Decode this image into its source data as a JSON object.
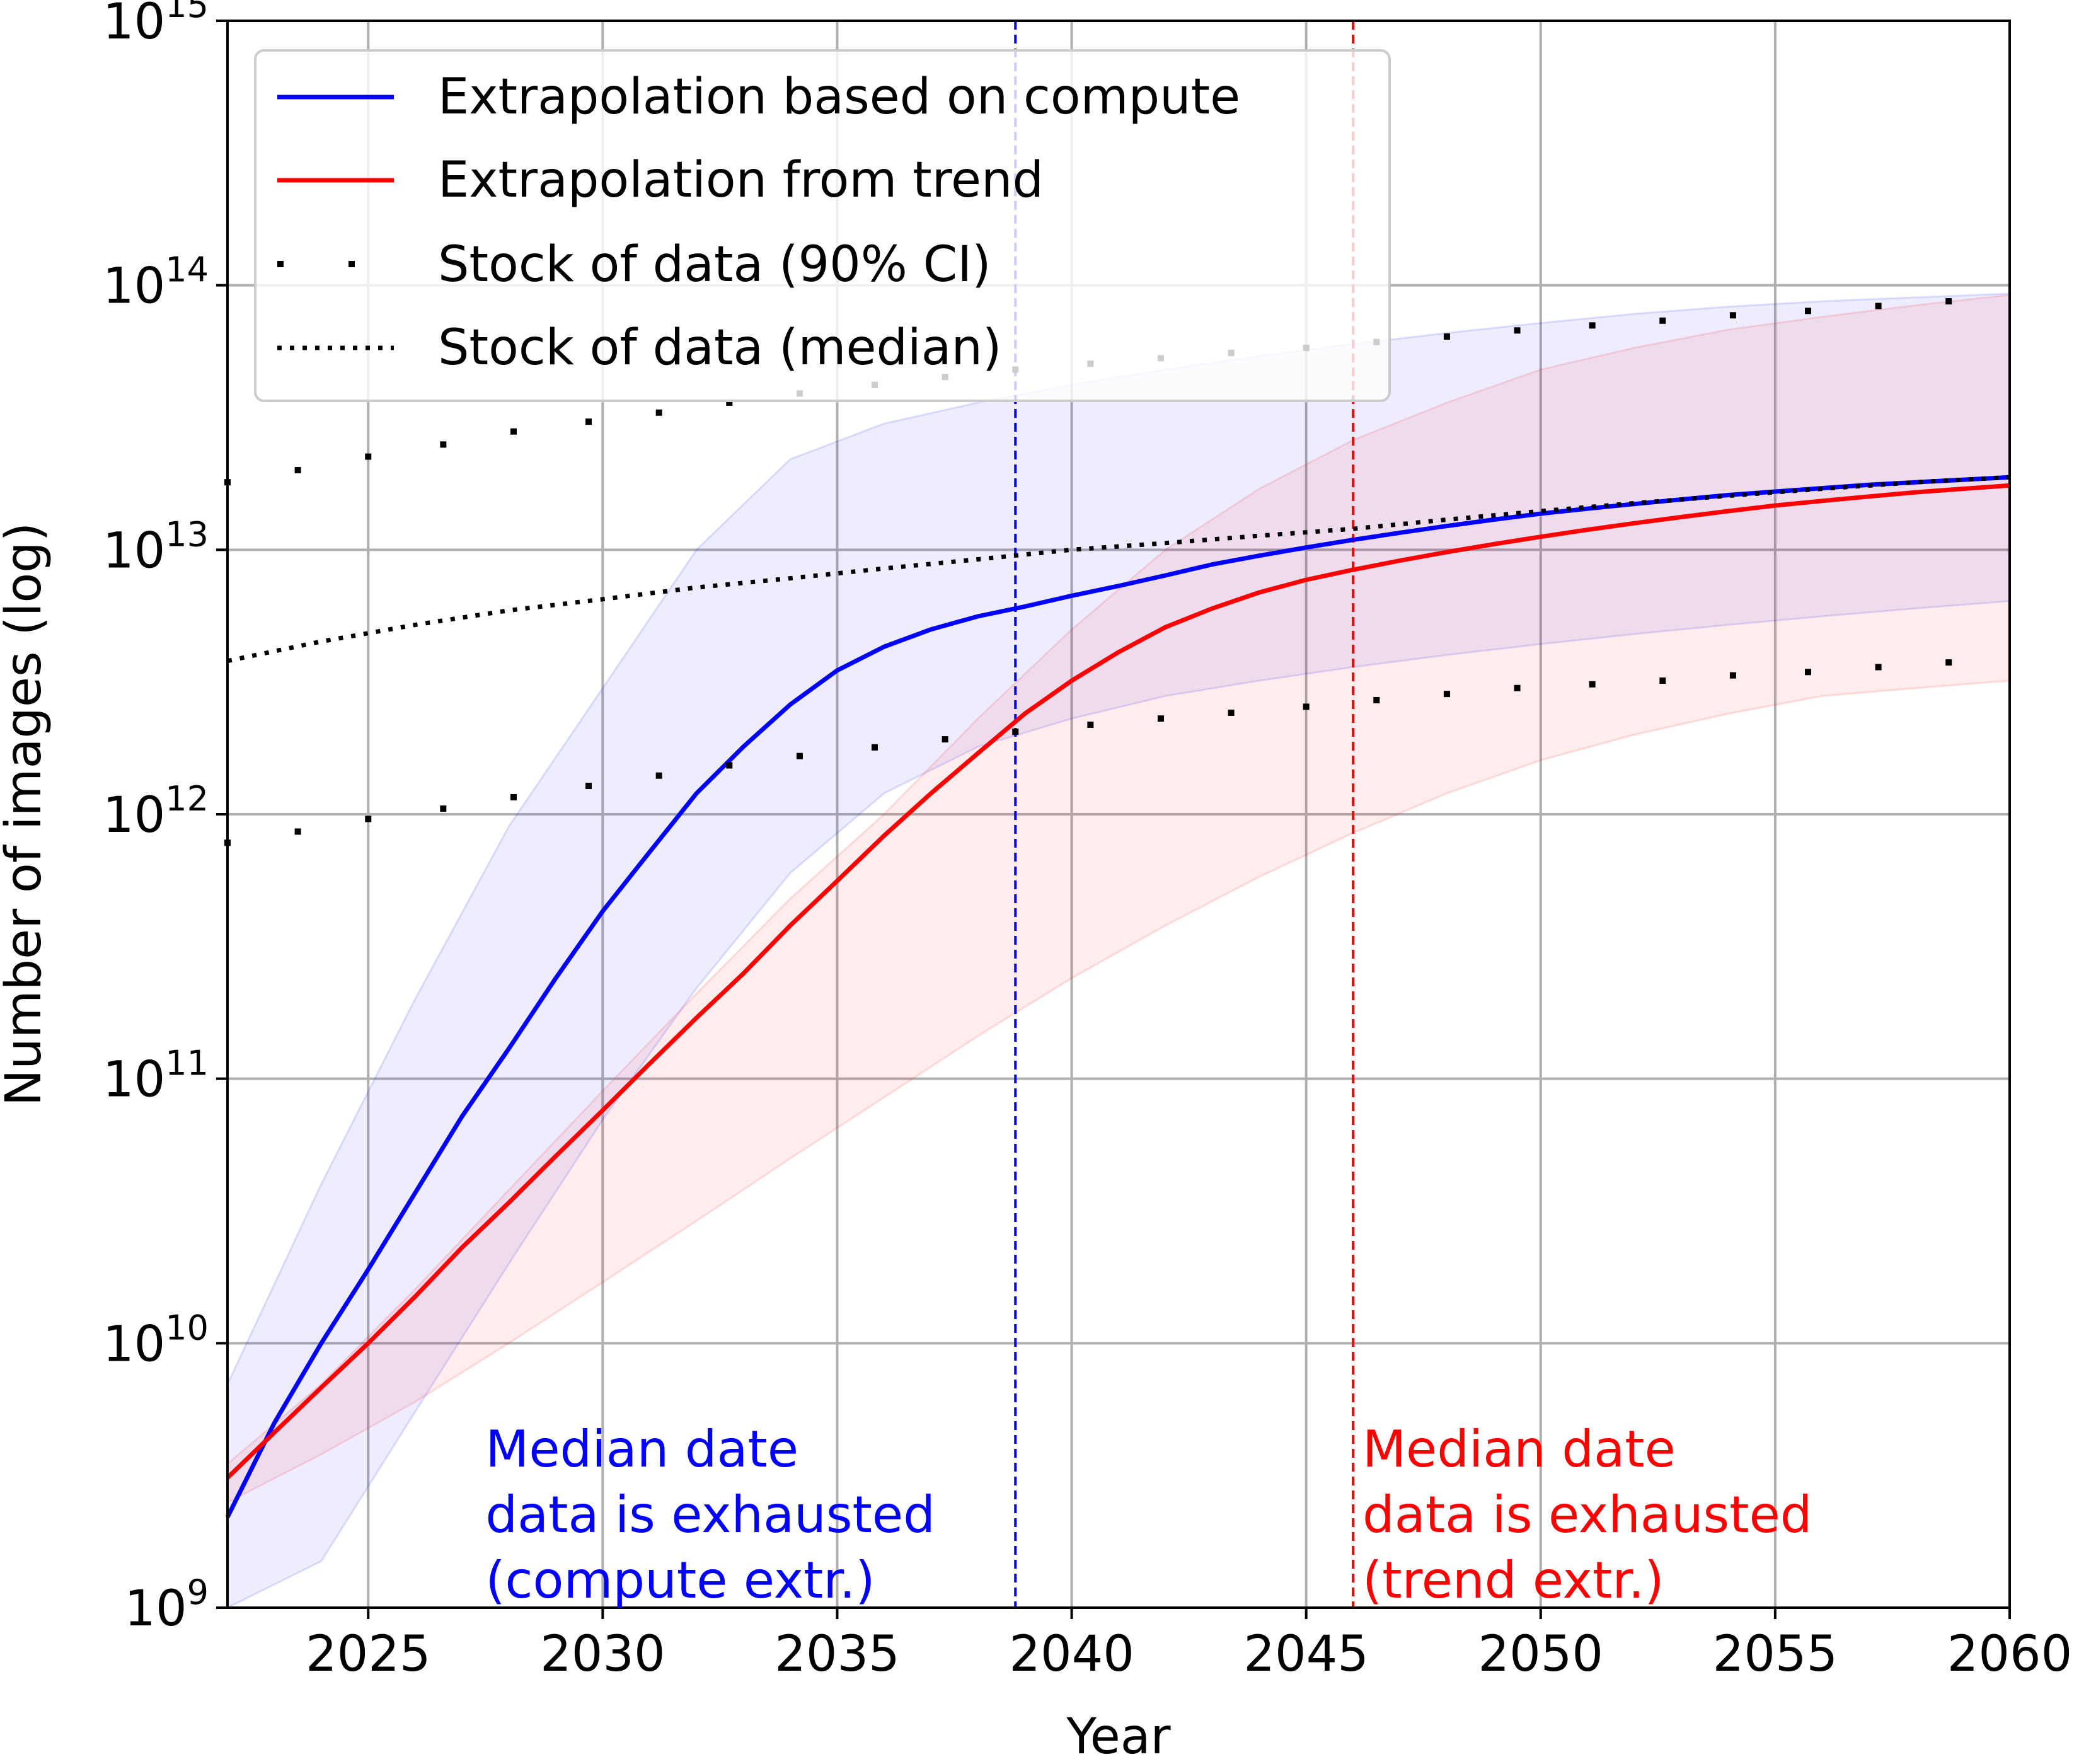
{
  "chart_data": {
    "type": "line",
    "title": "",
    "xlabel": "Year",
    "ylabel": "Number of images (log)",
    "xlim": [
      2022,
      2060
    ],
    "ylim": [
      1000000000.0,
      1000000000000000.0
    ],
    "yscale": "log",
    "grid": true,
    "legend_position": "top-left",
    "x_ticks": [
      "2025",
      "2030",
      "2035",
      "2040",
      "2045",
      "2050",
      "2055",
      "2060"
    ],
    "y_ticks": [
      {
        "base": "10",
        "exp": "9"
      },
      {
        "base": "10",
        "exp": "10"
      },
      {
        "base": "10",
        "exp": "11"
      },
      {
        "base": "10",
        "exp": "12"
      },
      {
        "base": "10",
        "exp": "13"
      },
      {
        "base": "10",
        "exp": "14"
      },
      {
        "base": "10",
        "exp": "15"
      }
    ],
    "series": [
      {
        "name": "Extrapolation based on compute",
        "color": "#0000ff",
        "style": "solid",
        "x": [
          2022,
          2023,
          2024,
          2025,
          2026,
          2027,
          2028,
          2029,
          2030,
          2031,
          2032,
          2033,
          2034,
          2035,
          2036,
          2037,
          2038,
          2039,
          2040,
          2041,
          2042,
          2043,
          2044,
          2045,
          2046,
          2047,
          2048,
          2049,
          2050,
          2051,
          2052,
          2053,
          2054,
          2055,
          2056,
          2057,
          2058,
          2059,
          2060
        ],
        "y": [
          2200000000.0,
          5000000000.0,
          10000000000.0,
          19000000000.0,
          37000000000.0,
          72000000000.0,
          130000000000.0,
          240000000000.0,
          430000000000.0,
          720000000000.0,
          1200000000000.0,
          1800000000000.0,
          2600000000000.0,
          3500000000000.0,
          4300000000000.0,
          5000000000000.0,
          5600000000000.0,
          6100000000000.0,
          6700000000000.0,
          7300000000000.0,
          8000000000000.0,
          8800000000000.0,
          9500000000000.0,
          10200000000000.0,
          10900000000000.0,
          11600000000000.0,
          12300000000000.0,
          13000000000000.0,
          13700000000000.0,
          14300000000000.0,
          14900000000000.0,
          15500000000000.0,
          16100000000000.0,
          16600000000000.0,
          17100000000000.0,
          17600000000000.0,
          18000000000000.0,
          18400000000000.0,
          18800000000000.0
        ]
      },
      {
        "name": "Extrapolation from trend",
        "color": "#ff0000",
        "style": "solid",
        "x": [
          2022,
          2023,
          2024,
          2025,
          2026,
          2027,
          2028,
          2029,
          2030,
          2031,
          2032,
          2033,
          2034,
          2035,
          2036,
          2037,
          2038,
          2039,
          2040,
          2041,
          2042,
          2043,
          2044,
          2045,
          2046,
          2047,
          2048,
          2049,
          2050,
          2051,
          2052,
          2053,
          2054,
          2055,
          2056,
          2057,
          2058,
          2059,
          2060
        ],
        "y": [
          3100000000.0,
          4600000000.0,
          6800000000.0,
          10000000000.0,
          15000000000.0,
          23000000000.0,
          34000000000.0,
          51000000000.0,
          76000000000.0,
          114000000000.0,
          170000000000.0,
          250000000000.0,
          380000000000.0,
          560000000000.0,
          830000000000.0,
          1200000000000.0,
          1700000000000.0,
          2400000000000.0,
          3200000000000.0,
          4100000000000.0,
          5100000000000.0,
          6000000000000.0,
          6900000000000.0,
          7700000000000.0,
          8400000000000.0,
          9100000000000.0,
          9800000000000.0,
          10500000000000.0,
          11200000000000.0,
          11900000000000.0,
          12600000000000.0,
          13300000000000.0,
          14000000000000.0,
          14700000000000.0,
          15300000000000.0,
          15900000000000.0,
          16500000000000.0,
          17000000000000.0,
          17500000000000.0
        ]
      },
      {
        "name": "Stock of data (90% CI)",
        "color": "#000000",
        "style": "sparse-dots",
        "x": [
          2022,
          2023.5,
          2025,
          2026.6,
          2028.1,
          2029.7,
          2031.2,
          2032.7,
          2034.2,
          2035.8,
          2037.3,
          2038.8,
          2040.4,
          2041.9,
          2043.4,
          2045,
          2046.5,
          2048,
          2049.5,
          2051.1,
          2052.6,
          2054.1,
          2055.7,
          2057.2,
          2058.7
        ],
        "y_lower": [
          780000000000.0,
          860000000000.0,
          960000000000.0,
          1050000000000.0,
          1160000000000.0,
          1280000000000.0,
          1400000000000.0,
          1530000000000.0,
          1660000000000.0,
          1790000000000.0,
          1920000000000.0,
          2050000000000.0,
          2180000000000.0,
          2300000000000.0,
          2420000000000.0,
          2550000000000.0,
          2700000000000.0,
          2850000000000.0,
          3000000000000.0,
          3100000000000.0,
          3200000000000.0,
          3350000000000.0,
          3450000000000.0,
          3600000000000.0,
          3750000000000.0
        ],
        "y_upper": [
          18000000000000.0,
          20000000000000.0,
          22500000000000.0,
          25000000000000.0,
          28000000000000.0,
          30500000000000.0,
          33000000000000.0,
          36000000000000.0,
          39000000000000.0,
          42000000000000.0,
          45000000000000.0,
          48000000000000.0,
          50500000000000.0,
          53000000000000.0,
          55500000000000.0,
          58000000000000.0,
          61000000000000.0,
          64000000000000.0,
          67500000000000.0,
          70500000000000.0,
          73500000000000.0,
          77000000000000.0,
          80000000000000.0,
          83500000000000.0,
          87000000000000.0
        ]
      },
      {
        "name": "Stock of data (median)",
        "color": "#000000",
        "style": "dotted",
        "x": [
          2022,
          2024,
          2026,
          2028,
          2030,
          2032,
          2034,
          2036,
          2038,
          2040,
          2042,
          2044,
          2046,
          2048,
          2050,
          2052,
          2054,
          2056,
          2058,
          2060
        ],
        "y": [
          3800000000000.0,
          4500000000000.0,
          5200000000000.0,
          5900000000000.0,
          6500000000000.0,
          7200000000000.0,
          7800000000000.0,
          8500000000000.0,
          9200000000000.0,
          10000000000000.0,
          10600000000000.0,
          11300000000000.0,
          12000000000000.0,
          13000000000000.0,
          14000000000000.0,
          15000000000000.0,
          16000000000000.0,
          17000000000000.0,
          18000000000000.0,
          18800000000000.0
        ]
      }
    ],
    "bands": [
      {
        "color": "#0000ff",
        "x": [
          2022,
          2024,
          2026,
          2028,
          2030,
          2032,
          2034,
          2036,
          2038,
          2040,
          2042,
          2044,
          2046,
          2048,
          2050,
          2052,
          2054,
          2056,
          2058,
          2060
        ],
        "lower": [
          400000000.0,
          1500000000.0,
          5500000000.0,
          20000000000.0,
          70000000000.0,
          220000000000.0,
          600000000000.0,
          1200000000000.0,
          1800000000000.0,
          2300000000000.0,
          2800000000000.0,
          3200000000000.0,
          3600000000000.0,
          4000000000000.0,
          4400000000000.0,
          4800000000000.0,
          5200000000000.0,
          5600000000000.0,
          6000000000000.0,
          6400000000000.0
        ],
        "upper": [
          7000000000.0,
          40000000000.0,
          200000000000.0,
          900000000000.0,
          3000000000000.0,
          10000000000000.0,
          22000000000000.0,
          30000000000000.0,
          36000000000000.0,
          42000000000000.0,
          48000000000000.0,
          54000000000000.0,
          60000000000000.0,
          66000000000000.0,
          72000000000000.0,
          78000000000000.0,
          83000000000000.0,
          87000000000000.0,
          90000000000000.0,
          93000000000000.0
        ]
      },
      {
        "color": "#ff0000",
        "x": [
          2022,
          2024,
          2026,
          2028,
          2030,
          2032,
          2034,
          2036,
          2038,
          2040,
          2042,
          2044,
          2046,
          2048,
          2050,
          2052,
          2054,
          2056,
          2058,
          2060
        ],
        "lower": [
          2500000000.0,
          3800000000.0,
          6000000000.0,
          10000000000.0,
          17000000000.0,
          29000000000.0,
          50000000000.0,
          85000000000.0,
          145000000000.0,
          240000000000.0,
          380000000000.0,
          580000000000.0,
          850000000000.0,
          1200000000000.0,
          1600000000000.0,
          2000000000000.0,
          2400000000000.0,
          2800000000000.0,
          3000000000000.0,
          3200000000000.0
        ],
        "upper": [
          3500000000.0,
          7000000000.0,
          16000000000.0,
          38000000000.0,
          90000000000.0,
          210000000000.0,
          480000000000.0,
          1000000000000.0,
          2300000000000.0,
          5000000000000.0,
          10000000000000.0,
          17000000000000.0,
          26000000000000.0,
          36000000000000.0,
          48000000000000.0,
          58000000000000.0,
          68000000000000.0,
          76000000000000.0,
          84000000000000.0,
          92000000000000.0
        ]
      }
    ],
    "vlines": [
      {
        "x": 2038.8,
        "color": "#0000ff",
        "style": "dashed"
      },
      {
        "x": 2046.0,
        "color": "#ff0000",
        "style": "dashed"
      }
    ],
    "annotations": [
      {
        "lines": [
          "Median date",
          "data is exhausted",
          "(compute extr.)"
        ],
        "color": "#0000ff",
        "x": 2027.5
      },
      {
        "lines": [
          "Median date",
          "data is exhausted",
          "(trend extr.)"
        ],
        "color": "#ff0000",
        "x": 2046.2
      }
    ]
  }
}
